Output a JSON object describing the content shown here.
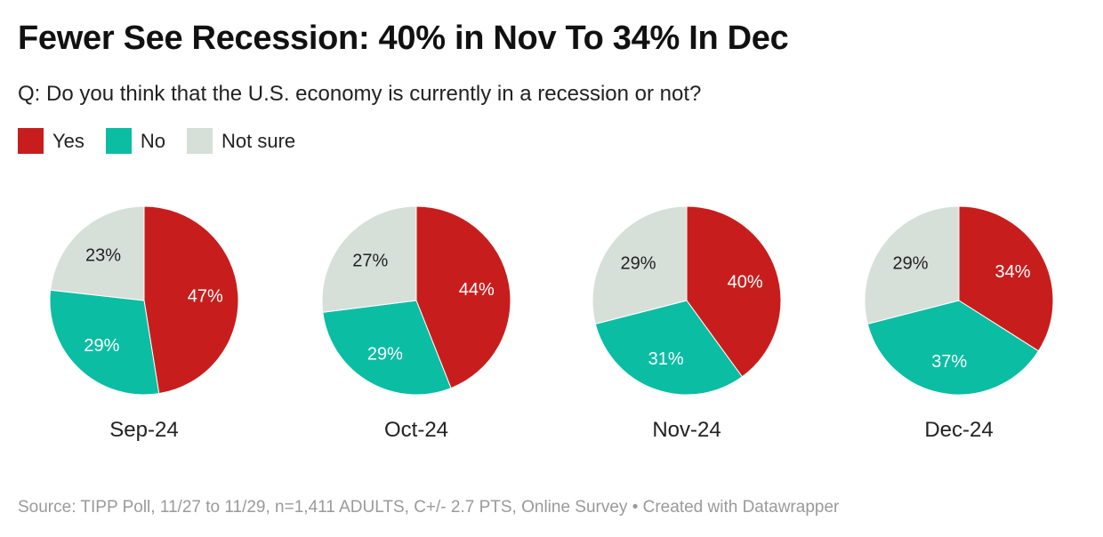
{
  "title": "Fewer See Recession: 40% in Nov To 34% In Dec",
  "subtitle": "Q: Do you think that the U.S. economy is currently in a recession or not?",
  "legend": [
    {
      "label": "Yes",
      "color": "#c71e1d"
    },
    {
      "label": "No",
      "color": "#0bbda3"
    },
    {
      "label": "Not sure",
      "color": "#d7dfd9"
    }
  ],
  "chart_data": {
    "type": "pie",
    "title": "Fewer See Recession: 40% in Nov To 34% In Dec",
    "categories": [
      "Yes",
      "No",
      "Not sure"
    ],
    "series": [
      {
        "name": "Sep-24",
        "values": [
          47,
          29,
          23
        ],
        "labels": [
          "47%",
          "29%",
          "23%"
        ]
      },
      {
        "name": "Oct-24",
        "values": [
          44,
          29,
          27
        ],
        "labels": [
          "44%",
          "29%",
          "27%"
        ]
      },
      {
        "name": "Nov-24",
        "values": [
          40,
          31,
          29
        ],
        "labels": [
          "40%",
          "31%",
          "29%"
        ]
      },
      {
        "name": "Dec-24",
        "values": [
          34,
          37,
          29
        ],
        "labels": [
          "34%",
          "37%",
          "29%"
        ]
      }
    ],
    "label_colors": [
      "#ffffff",
      "#ffffff",
      "#222222"
    ]
  },
  "footer": "Source: TIPP Poll, 11/27 to 11/29, n=1,411 ADULTS, C+/- 2.7 PTS, Online Survey • Created with Datawrapper"
}
